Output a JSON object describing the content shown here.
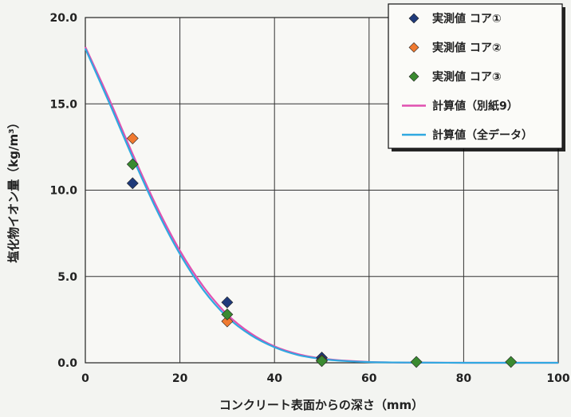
{
  "chart_data": {
    "type": "scatter",
    "xlabel": "コンクリート表面からの深さ（mm）",
    "ylabel": "塩化物イオン量（kg/m³）",
    "xlim": [
      0,
      100
    ],
    "ylim": [
      0,
      20
    ],
    "x_ticks": [
      "0",
      "20",
      "40",
      "60",
      "80",
      "100"
    ],
    "y_ticks": [
      "0.0",
      "5.0",
      "10.0",
      "15.0",
      "20.0"
    ],
    "grid": true,
    "legend_position": "top-right",
    "series": [
      {
        "name": "実測値 コア①",
        "kind": "marker",
        "color": "#1f3a7a",
        "x": [
          10,
          30,
          50
        ],
        "y": [
          10.4,
          3.5,
          0.3
        ]
      },
      {
        "name": "実測値 コア②",
        "kind": "marker",
        "color": "#f07a30",
        "x": [
          10,
          30,
          50
        ],
        "y": [
          13.0,
          2.4,
          0.15
        ]
      },
      {
        "name": "実測値 コア③",
        "kind": "marker",
        "color": "#3a8a30",
        "x": [
          10,
          30,
          50,
          70,
          90
        ],
        "y": [
          11.5,
          2.8,
          0.1,
          0.05,
          0.05
        ]
      },
      {
        "name": "計算値（別紙9）",
        "kind": "line",
        "color": "#e050b0",
        "x": [
          0,
          5,
          10,
          15,
          20,
          25,
          30,
          35,
          40,
          45,
          50,
          55,
          60,
          65,
          70,
          80,
          90,
          100
        ],
        "y": [
          18.3,
          15.3,
          12.1,
          9.1,
          6.5,
          4.4,
          2.8,
          1.7,
          0.95,
          0.5,
          0.25,
          0.12,
          0.05,
          0.02,
          0.01,
          0,
          0,
          0
        ]
      },
      {
        "name": "計算値（全データ）",
        "kind": "line",
        "color": "#30a8e0",
        "x": [
          0,
          5,
          10,
          15,
          20,
          25,
          30,
          35,
          40,
          45,
          50,
          55,
          60,
          65,
          70,
          80,
          90,
          100
        ],
        "y": [
          18.2,
          15.1,
          11.9,
          8.9,
          6.3,
          4.2,
          2.65,
          1.6,
          0.9,
          0.45,
          0.22,
          0.1,
          0.04,
          0.02,
          0.01,
          0,
          0,
          0
        ]
      }
    ]
  }
}
